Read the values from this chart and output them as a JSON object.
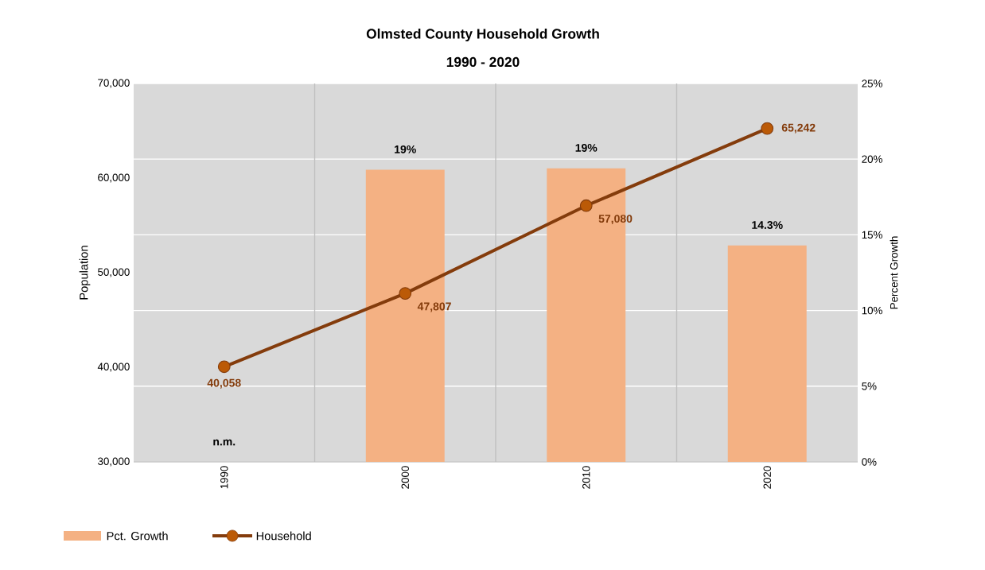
{
  "chart_data": {
    "type": "bar",
    "title": "Olmsted County Household Growth",
    "subtitle": "1990 - 2020",
    "ylabel": "Population",
    "y2label": "Percent Growth",
    "categories": [
      "1990",
      "2000",
      "2010",
      "2020"
    ],
    "series": [
      {
        "name": "Pct. Growth",
        "axis": "y2",
        "color": "#f4b183",
        "values": [
          null,
          19.3,
          19.4,
          14.3
        ],
        "value_labels": [
          "n.m.",
          "19%",
          "19%",
          "14.3%"
        ]
      },
      {
        "name": "Household",
        "type": "line",
        "color": "#843c0c",
        "values": [
          40058,
          47807,
          57080,
          65242
        ],
        "value_labels": [
          "40,058",
          "47,807",
          "57,080",
          "65,242"
        ]
      }
    ],
    "ylim": [
      30000,
      70000
    ],
    "yticks": [
      {
        "value": 30000,
        "label": "30,000"
      },
      {
        "value": 40000,
        "label": "40,000"
      },
      {
        "value": 50000,
        "label": "50,000"
      },
      {
        "value": 60000,
        "label": "60,000"
      },
      {
        "value": 70000,
        "label": "70,000"
      }
    ],
    "y2lim": [
      0,
      25
    ],
    "y2ticks": [
      {
        "value": 0,
        "label": "0%"
      },
      {
        "value": 5,
        "label": "5%"
      },
      {
        "value": 10,
        "label": "10%"
      },
      {
        "value": 15,
        "label": "15%"
      },
      {
        "value": 20,
        "label": "20%"
      },
      {
        "value": 25,
        "label": "25%"
      }
    ],
    "grid": true,
    "legend": "bottom left",
    "marker": "circle",
    "line_style": "solid"
  }
}
